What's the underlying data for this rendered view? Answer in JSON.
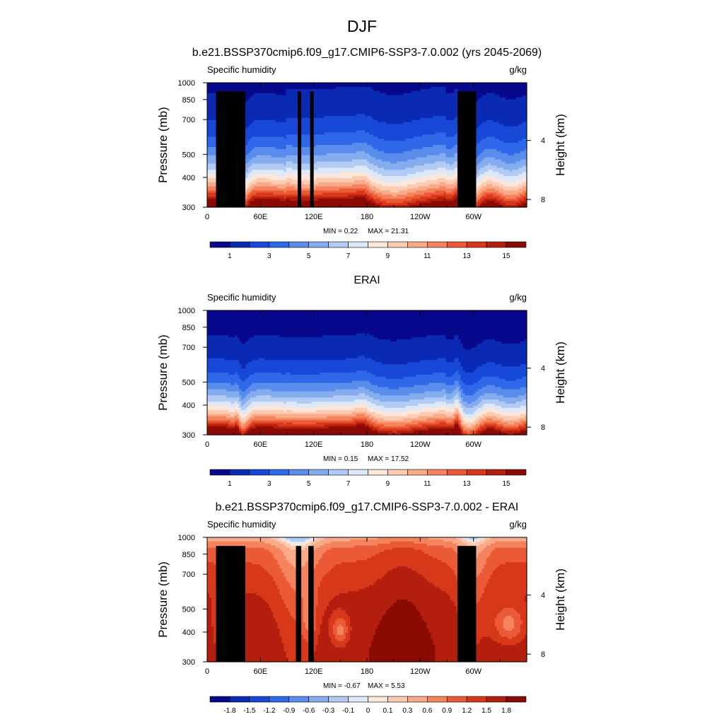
{
  "figure": {
    "season_title": "DJF"
  },
  "chart_data": [
    {
      "type": "heatmap",
      "title": "b.e21.BSSP370cmip6.f09_g17.CMIP6-SSP3-7.0.002 (yrs 2045-2069)",
      "variable": "Specific humidity",
      "units": "g/kg",
      "ylabel": "Pressure (mb)",
      "ylabel_right": "Height (km)",
      "x_ticks": [
        "0",
        "60E",
        "120E",
        "180",
        "120W",
        "60W"
      ],
      "x_tick_values": [
        0,
        60,
        120,
        180,
        240,
        300
      ],
      "xlim": [
        0,
        360
      ],
      "y_ticks": [
        "300",
        "400",
        "500",
        "700",
        "850",
        "1000"
      ],
      "y_tick_values": [
        300,
        400,
        500,
        700,
        850,
        1000
      ],
      "ylim": [
        1000,
        300
      ],
      "y_scale": "log",
      "height_ticks": [
        "8",
        "4"
      ],
      "height_tick_values": [
        8,
        4
      ],
      "min_label": "MIN =   0.22",
      "max_label": "MAX =  21.31",
      "min": 0.22,
      "max": 21.31,
      "colorbar_labels": [
        "1",
        "3",
        "5",
        "7",
        "9",
        "11",
        "13",
        "15"
      ],
      "colorbar_levels": [
        1,
        2,
        3,
        4,
        5,
        6,
        7,
        8,
        9,
        10,
        11,
        12,
        13,
        14,
        15
      ],
      "colormap": [
        "#08088c",
        "#0a2ab4",
        "#1848d8",
        "#2f68e8",
        "#5a8cec",
        "#86acf0",
        "#b2cbf4",
        "#dde8f8",
        "#fde7da",
        "#fccbb2",
        "#f9aa88",
        "#f4835e",
        "#eb5a36",
        "#d8381a",
        "#b41e0e",
        "#8a0a04"
      ],
      "fields": [
        {
          "gap": 0.55,
          "base": 2.0
        },
        {
          "gap": 0.3,
          "base": 1.9
        },
        {
          "gap": 0.45,
          "base": 1.85
        },
        {
          "gap": 0.8,
          "base": 1.95
        }
      ],
      "terrain": [
        [
          10,
          33,
          920
        ],
        [
          20,
          26,
          820
        ],
        [
          33,
          43,
          920
        ],
        [
          102,
          106,
          920
        ],
        [
          116,
          120,
          920
        ],
        [
          282,
          303,
          920
        ]
      ]
    },
    {
      "type": "heatmap",
      "title": "ERAI",
      "variable": "Specific humidity",
      "units": "g/kg",
      "ylabel": "Pressure (mb)",
      "ylabel_right": "Height (km)",
      "x_ticks": [
        "0",
        "60E",
        "120E",
        "180",
        "120W",
        "60W"
      ],
      "x_tick_values": [
        0,
        60,
        120,
        180,
        240,
        300
      ],
      "xlim": [
        0,
        360
      ],
      "y_ticks": [
        "300",
        "400",
        "500",
        "700",
        "850",
        "1000"
      ],
      "y_tick_values": [
        300,
        400,
        500,
        700,
        850,
        1000
      ],
      "ylim": [
        1000,
        300
      ],
      "y_scale": "log",
      "height_ticks": [
        "8",
        "4"
      ],
      "height_tick_values": [
        8,
        4
      ],
      "min_label": "MIN =   0.15",
      "max_label": "MAX =  17.52",
      "min": 0.15,
      "max": 17.52,
      "colorbar_labels": [
        "1",
        "3",
        "5",
        "7",
        "9",
        "11",
        "13",
        "15"
      ],
      "colorbar_levels": [
        1,
        2,
        3,
        4,
        5,
        6,
        7,
        8,
        9,
        10,
        11,
        12,
        13,
        14,
        15
      ],
      "colormap": [
        "#08088c",
        "#0a2ab4",
        "#1848d8",
        "#2f68e8",
        "#5a8cec",
        "#86acf0",
        "#b2cbf4",
        "#dde8f8",
        "#fde7da",
        "#fccbb2",
        "#f9aa88",
        "#f4835e",
        "#eb5a36",
        "#d8381a",
        "#b41e0e",
        "#8a0a04"
      ],
      "fields": [
        {
          "gap": 0.4,
          "base": 2.3
        },
        {
          "gap": 0.2,
          "base": 2.3
        },
        {
          "gap": 0.3,
          "base": 2.25
        },
        {
          "gap": 0.6,
          "base": 2.35
        }
      ],
      "terrain": []
    },
    {
      "type": "heatmap",
      "title": "b.e21.BSSP370cmip6.f09_g17.CMIP6-SSP3-7.0.002 - ERAI",
      "variable": "Specific humidity",
      "units": "g/kg",
      "ylabel": "Pressure (mb)",
      "ylabel_right": "Height (km)",
      "x_ticks": [
        "0",
        "60E",
        "120E",
        "180",
        "120W",
        "60W"
      ],
      "x_tick_values": [
        0,
        60,
        120,
        180,
        240,
        300
      ],
      "xlim": [
        0,
        360
      ],
      "y_ticks": [
        "300",
        "400",
        "500",
        "700",
        "850",
        "1000"
      ],
      "y_tick_values": [
        300,
        400,
        500,
        700,
        850,
        1000
      ],
      "ylim": [
        1000,
        300
      ],
      "y_scale": "log",
      "height_ticks": [
        "8",
        "4"
      ],
      "height_tick_values": [
        8,
        4
      ],
      "min_label": "MIN =  -0.67",
      "max_label": "MAX =   5.53",
      "min": -0.67,
      "max": 5.53,
      "colorbar_labels": [
        "-1.8",
        "-1.5",
        "-1.2",
        "-0.9",
        "-0.6",
        "-0.3",
        "-0.1",
        "0",
        "0.1",
        "0.3",
        "0.6",
        "0.9",
        "1.2",
        "1.5",
        "1.8"
      ],
      "colorbar_levels": [
        -1.8,
        -1.5,
        -1.2,
        -0.9,
        -0.6,
        -0.3,
        -0.1,
        0,
        0.1,
        0.3,
        0.6,
        0.9,
        1.2,
        1.5,
        1.8
      ],
      "colormap": [
        "#08088c",
        "#0a2ab4",
        "#1848d8",
        "#2f68e8",
        "#5a8cec",
        "#86acf0",
        "#b2cbf4",
        "#dde8f8",
        "#fde7da",
        "#fccbb2",
        "#f9aa88",
        "#f4835e",
        "#eb5a36",
        "#d8381a",
        "#b41e0e",
        "#8a0a04"
      ],
      "terrain": [
        [
          10,
          43,
          920
        ],
        [
          29,
          37,
          850
        ],
        [
          100,
          106,
          920
        ],
        [
          114,
          120,
          920
        ],
        [
          282,
          303,
          920
        ]
      ]
    }
  ]
}
